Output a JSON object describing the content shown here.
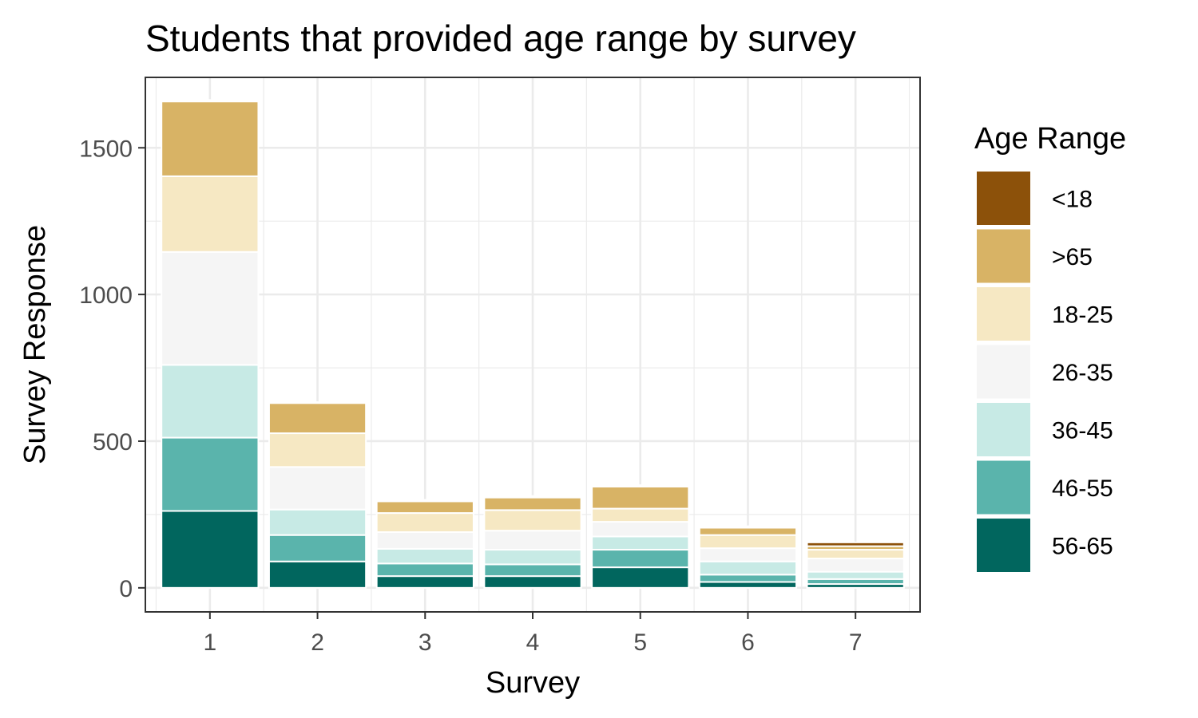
{
  "chart_data": {
    "type": "bar",
    "stacked": true,
    "title": "Students that provided age range by survey",
    "xlabel": "Survey",
    "ylabel": "Survey Response",
    "categories": [
      "1",
      "2",
      "3",
      "4",
      "5",
      "6",
      "7"
    ],
    "ylim": [
      -82,
      1740
    ],
    "yticks": [
      0,
      500,
      1000,
      1500
    ],
    "grid": true,
    "legend": {
      "title": "Age Range",
      "placement": "right"
    },
    "series": [
      {
        "name": "56-65",
        "color": "#01665e",
        "values": [
          262,
          90,
          40,
          40,
          70,
          20,
          13
        ]
      },
      {
        "name": "46-55",
        "color": "#5ab4ac",
        "values": [
          250,
          90,
          43,
          40,
          60,
          25,
          17
        ]
      },
      {
        "name": "36-45",
        "color": "#c7eae5",
        "values": [
          248,
          87,
          50,
          50,
          45,
          45,
          25
        ]
      },
      {
        "name": "26-35",
        "color": "#f5f5f5",
        "values": [
          385,
          145,
          57,
          65,
          50,
          45,
          45
        ]
      },
      {
        "name": "18-25",
        "color": "#f6e8c3",
        "values": [
          258,
          115,
          65,
          70,
          45,
          45,
          30
        ]
      },
      {
        "name": ">65",
        "color": "#d8b365",
        "values": [
          255,
          103,
          40,
          43,
          75,
          25,
          12
        ]
      },
      {
        "name": "<18",
        "color": "#8c510a",
        "values": [
          5,
          3,
          5,
          5,
          5,
          5,
          13
        ]
      }
    ]
  },
  "legend_order": [
    "<18",
    ">65",
    "18-25",
    "26-35",
    "36-45",
    "46-55",
    "56-65"
  ]
}
